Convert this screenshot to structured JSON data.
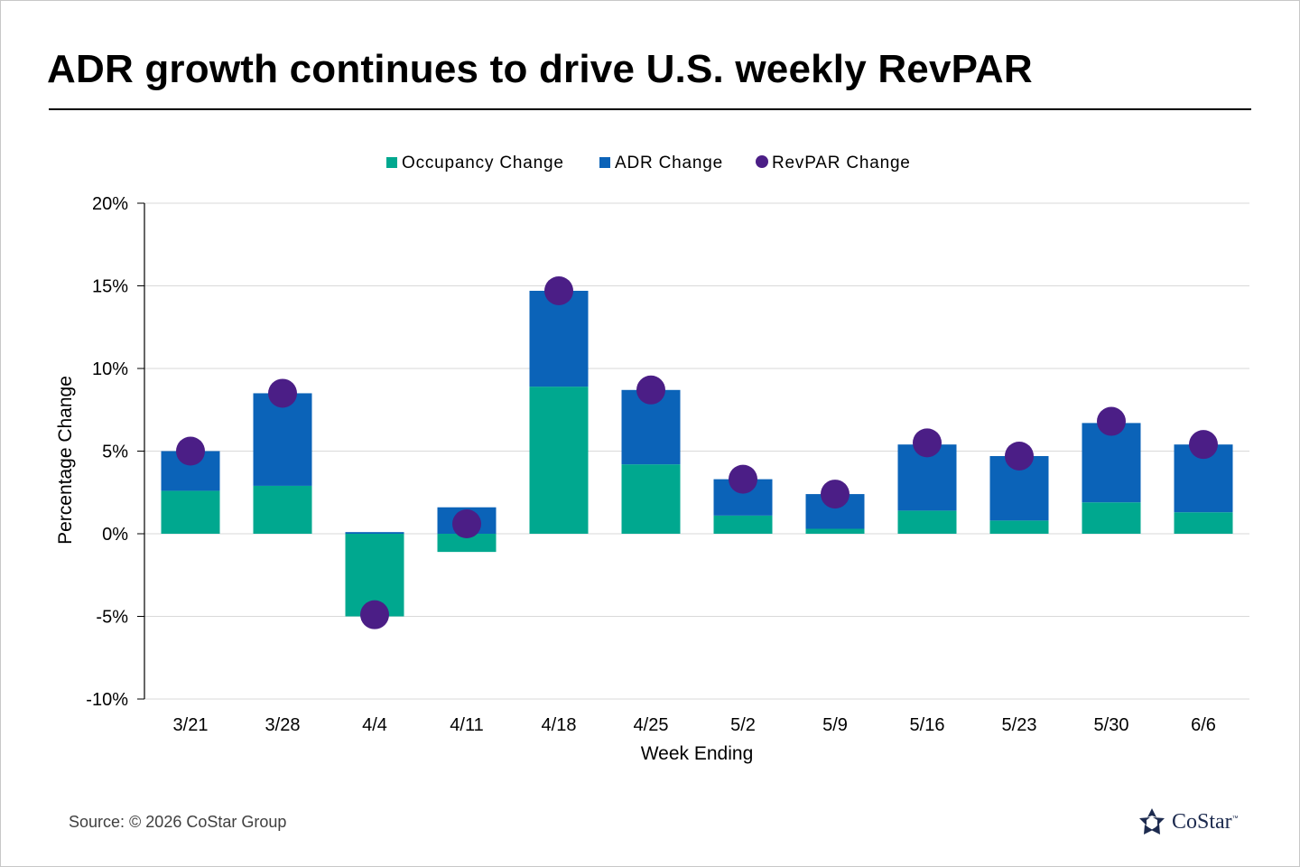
{
  "title": "ADR growth continues to drive U.S. weekly RevPAR",
  "source": "Source: © 2026 CoStar Group",
  "logo": {
    "name": "CoStar",
    "tm": "™",
    "icon": "costar-star-icon",
    "color": "#1d2b4f"
  },
  "colors": {
    "occupancy": "#00a88f",
    "adr": "#0b63b8",
    "revpar": "#4b1e86",
    "grid": "#d9d9d9",
    "axis": "#000000"
  },
  "chart_data": {
    "type": "bar",
    "stacked": true,
    "categories": [
      "3/21",
      "3/28",
      "4/4",
      "4/11",
      "4/18",
      "4/25",
      "5/2",
      "5/9",
      "5/16",
      "5/23",
      "5/30",
      "6/6"
    ],
    "series": [
      {
        "name": "Occupancy Change",
        "kind": "bar",
        "values": [
          2.6,
          2.9,
          -5.0,
          -1.1,
          8.9,
          4.2,
          1.1,
          0.3,
          1.4,
          0.8,
          1.9,
          1.3
        ]
      },
      {
        "name": "ADR Change",
        "kind": "bar",
        "values": [
          2.4,
          5.6,
          0.1,
          1.6,
          5.8,
          4.5,
          2.2,
          2.1,
          4.0,
          3.9,
          4.8,
          4.1
        ]
      },
      {
        "name": "RevPAR Change",
        "kind": "scatter",
        "values": [
          5.0,
          8.5,
          -4.9,
          0.6,
          14.7,
          8.7,
          3.3,
          2.4,
          5.5,
          4.7,
          6.8,
          5.4
        ]
      }
    ],
    "xlabel": "Week Ending",
    "ylabel": "Percentage Change",
    "ylim": [
      -10,
      20
    ],
    "yticks": [
      -10,
      -5,
      0,
      5,
      10,
      15,
      20
    ],
    "ytick_labels": [
      "-10%",
      "-5%",
      "0%",
      "5%",
      "10%",
      "15%",
      "20%"
    ],
    "grid": true,
    "legend_position": "top-center"
  }
}
